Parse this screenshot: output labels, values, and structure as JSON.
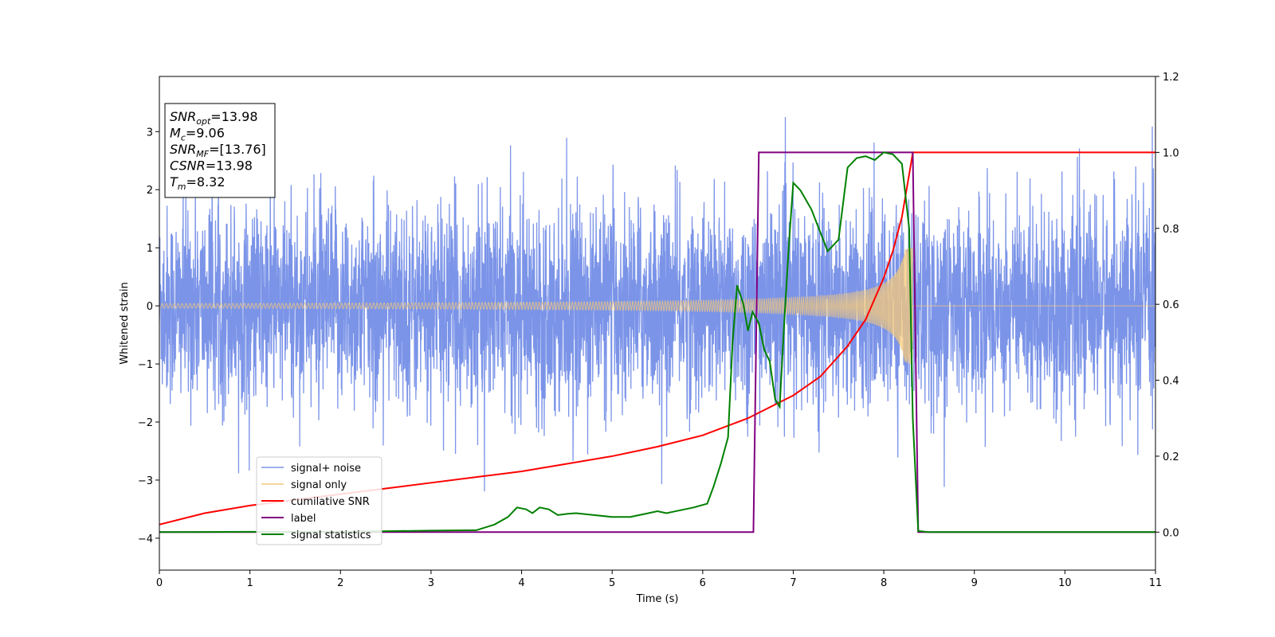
{
  "chart_data": {
    "type": "line",
    "xlabel": "Time (s)",
    "ylabel": "Whitened strain",
    "xlim": [
      0,
      11
    ],
    "ylim": [
      -4.55,
      3.95
    ],
    "y2lim": [
      -0.1,
      1.2
    ],
    "xticks": [
      "0",
      "1",
      "2",
      "3",
      "4",
      "5",
      "6",
      "7",
      "8",
      "9",
      "10",
      "11"
    ],
    "yticks": [
      "−4",
      "−3",
      "−2",
      "−1",
      "0",
      "1",
      "2",
      "3"
    ],
    "y2ticks": [
      "0.0",
      "0.2",
      "0.4",
      "0.6",
      "0.8",
      "1.0",
      "1.2"
    ],
    "grid": false,
    "legend_position": "lower-left",
    "annotation": {
      "lines": [
        {
          "base": "SNR",
          "sub": "opt",
          "value": "=13.98"
        },
        {
          "base": "M",
          "sub": "c",
          "value": "=9.06"
        },
        {
          "base": "SNR",
          "sub": "MF",
          "value": "=[13.76]"
        },
        {
          "base": "CSNR",
          "sub": "",
          "value": "=13.98"
        },
        {
          "base": "T",
          "sub": "m",
          "value": "=8.32"
        }
      ]
    },
    "series": [
      {
        "name": "signal+ noise",
        "color": "#7b94e8",
        "axis": "left",
        "kind": "noise",
        "x_range": [
          0,
          11
        ],
        "std": 0.85,
        "approx_peak": 3.6
      },
      {
        "name": "signal only",
        "color": "#f5c97a",
        "axis": "left",
        "kind": "chirp",
        "x_range": [
          0,
          8.32
        ],
        "amplitude_start": 0.04,
        "amplitude_end": 1.0,
        "merger_time": 8.32
      },
      {
        "name": "cumilative SNR",
        "color": "#ff0000",
        "axis": "right",
        "x": [
          0,
          0.5,
          1,
          1.5,
          2,
          2.5,
          3,
          3.5,
          4,
          4.5,
          5,
          5.5,
          6,
          6.5,
          7,
          7.3,
          7.6,
          7.8,
          8.0,
          8.1,
          8.2,
          8.3,
          8.32,
          11
        ],
        "y": [
          0.02,
          0.05,
          0.07,
          0.085,
          0.1,
          0.115,
          0.13,
          0.145,
          0.16,
          0.18,
          0.2,
          0.225,
          0.255,
          0.3,
          0.36,
          0.41,
          0.49,
          0.56,
          0.67,
          0.74,
          0.83,
          0.97,
          1.0,
          1.0
        ]
      },
      {
        "name": "label",
        "color": "#800080",
        "axis": "right",
        "x": [
          0,
          6.56,
          6.62,
          8.32,
          8.38,
          11
        ],
        "y": [
          0,
          0,
          1,
          1,
          0,
          0
        ]
      },
      {
        "name": "signal statistics",
        "color": "#008000",
        "axis": "right",
        "x": [
          0,
          1,
          2,
          3,
          3.5,
          3.7,
          3.85,
          3.95,
          4.05,
          4.12,
          4.2,
          4.3,
          4.4,
          4.5,
          4.6,
          4.8,
          5.0,
          5.2,
          5.4,
          5.5,
          5.6,
          5.7,
          5.8,
          5.9,
          6.05,
          6.12,
          6.2,
          6.28,
          6.33,
          6.38,
          6.45,
          6.5,
          6.55,
          6.62,
          6.68,
          6.74,
          6.8,
          6.85,
          6.9,
          6.95,
          7.0,
          7.08,
          7.2,
          7.38,
          7.5,
          7.6,
          7.7,
          7.8,
          7.9,
          8.0,
          8.1,
          8.2,
          8.28,
          8.32,
          8.38,
          8.5,
          11
        ],
        "y": [
          0,
          0.001,
          0.001,
          0.004,
          0.005,
          0.02,
          0.04,
          0.065,
          0.06,
          0.05,
          0.065,
          0.06,
          0.045,
          0.048,
          0.05,
          0.045,
          0.04,
          0.04,
          0.05,
          0.055,
          0.05,
          0.055,
          0.06,
          0.065,
          0.075,
          0.12,
          0.18,
          0.25,
          0.5,
          0.65,
          0.6,
          0.53,
          0.58,
          0.55,
          0.48,
          0.45,
          0.35,
          0.33,
          0.55,
          0.75,
          0.92,
          0.9,
          0.85,
          0.74,
          0.77,
          0.96,
          0.985,
          0.99,
          0.98,
          1.0,
          0.995,
          0.97,
          0.8,
          0.3,
          0.003,
          0,
          0
        ]
      }
    ]
  }
}
